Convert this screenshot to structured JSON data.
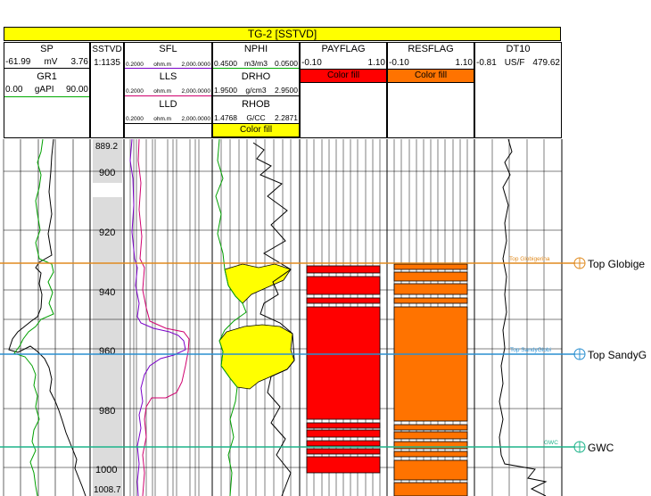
{
  "header": {
    "title": "TG-2 [SSTVD]"
  },
  "tracks": {
    "sp": {
      "name": "SP",
      "min": "-61.99",
      "unit": "mV",
      "max": "3.76"
    },
    "gr1": {
      "name": "GR1",
      "min": "0.00",
      "unit": "gAPI",
      "max": "90.00"
    },
    "sstvd": {
      "name": "SSTVD",
      "scale": "1:1135"
    },
    "sfl": {
      "name": "SFL",
      "min": "0.2000",
      "unit": "ohm.m",
      "max": "2,000.0000"
    },
    "lls": {
      "name": "LLS",
      "min": "0.2000",
      "unit": "ohm.m",
      "max": "2,000.0000"
    },
    "lld": {
      "name": "LLD",
      "min": "0.2000",
      "unit": "ohm.m",
      "max": "2,000.0000"
    },
    "nphi": {
      "name": "NPHI",
      "min": "0.4500",
      "unit": "m3/m3",
      "max": "0.0500"
    },
    "drho": {
      "name": "DRHO",
      "min": "1.9500",
      "unit": "g/cm3",
      "max": "2.9500"
    },
    "rhob": {
      "name": "RHOB",
      "min": "1.4768",
      "unit": "G/CC",
      "max": "2.2871"
    },
    "payflag": {
      "name": "PAYFLAG",
      "min": "-0.10",
      "max": "1.10"
    },
    "resflag": {
      "name": "RESFLAG",
      "min": "-0.10",
      "max": "1.10"
    },
    "dt10": {
      "name": "DT10",
      "min": "-0.81",
      "unit": "US/F",
      "max": "479.62"
    }
  },
  "fills": {
    "density_neutron": "Color fill",
    "payflag": "Color fill",
    "resflag": "Color fill"
  },
  "depth": {
    "top": "889.2",
    "bottom": "1008.7",
    "ticks": [
      "900",
      "920",
      "940",
      "960",
      "980",
      "1000"
    ]
  },
  "markers": [
    {
      "name": "Top Globigerina",
      "short": "Top Globige",
      "color": "#e08a1e"
    },
    {
      "name": "Top SandyGlobi",
      "short": "Top SandyG",
      "color": "#2a8fd0"
    },
    {
      "name": "GWC",
      "short": "GWC",
      "color": "#1db38a"
    }
  ],
  "colors": {
    "title_bg": "#ffff00",
    "payflag": "#ff0000",
    "resflag": "#ff7300",
    "fill_yellow": "#ffff00",
    "sp_curve": "#000000",
    "gr_curve": "#00a000",
    "sfl_curve": "#7a00c8",
    "lls_curve": "#d0006e"
  }
}
